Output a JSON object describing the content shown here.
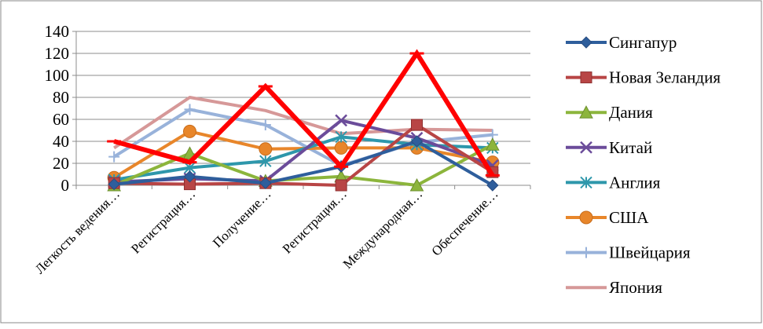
{
  "chart_data": {
    "type": "line",
    "title": "",
    "xlabel": "",
    "ylabel": "",
    "ylim": [
      0,
      140
    ],
    "yticks": [
      0,
      20,
      40,
      60,
      80,
      100,
      120,
      140
    ],
    "grid": true,
    "legend_position": "right",
    "categories": [
      "Легкость ведения…",
      "Регистрация…",
      "Получение…",
      "Регистрация…",
      "Международная…",
      "Обеспечение…"
    ],
    "series": [
      {
        "name": "Сингапур",
        "color": "#2e5e9c",
        "marker": "diamond",
        "values": [
          1,
          8,
          2,
          17,
          40,
          0
        ]
      },
      {
        "name": "Новая Зеландия",
        "color": "#b84545",
        "marker": "square",
        "values": [
          2,
          1,
          2,
          0,
          55,
          12
        ]
      },
      {
        "name": "Дания",
        "color": "#8cb53c",
        "marker": "triangle",
        "values": [
          0,
          29,
          4,
          8,
          0,
          37
        ]
      },
      {
        "name": "Китай",
        "color": "#6b4c9a",
        "marker": "x",
        "values": [
          3,
          6,
          4,
          59,
          43,
          18
        ]
      },
      {
        "name": "Англия",
        "color": "#2e97ab",
        "marker": "star",
        "values": [
          5,
          16,
          22,
          44,
          37,
          34
        ]
      },
      {
        "name": "США",
        "color": "#e8862a",
        "marker": "circle",
        "values": [
          7,
          49,
          33,
          34,
          34,
          21
        ]
      },
      {
        "name": "Швейцария",
        "color": "#98b2da",
        "marker": "plus",
        "values": [
          26,
          69,
          55,
          18,
          39,
          46
        ]
      },
      {
        "name": "Япония",
        "color": "#d69898",
        "marker": "none",
        "values": [
          34,
          80,
          68,
          47,
          51,
          50
        ]
      }
    ],
    "highlight": {
      "color": "#ff0000",
      "values": [
        40,
        21,
        90,
        17,
        120,
        9
      ]
    }
  }
}
